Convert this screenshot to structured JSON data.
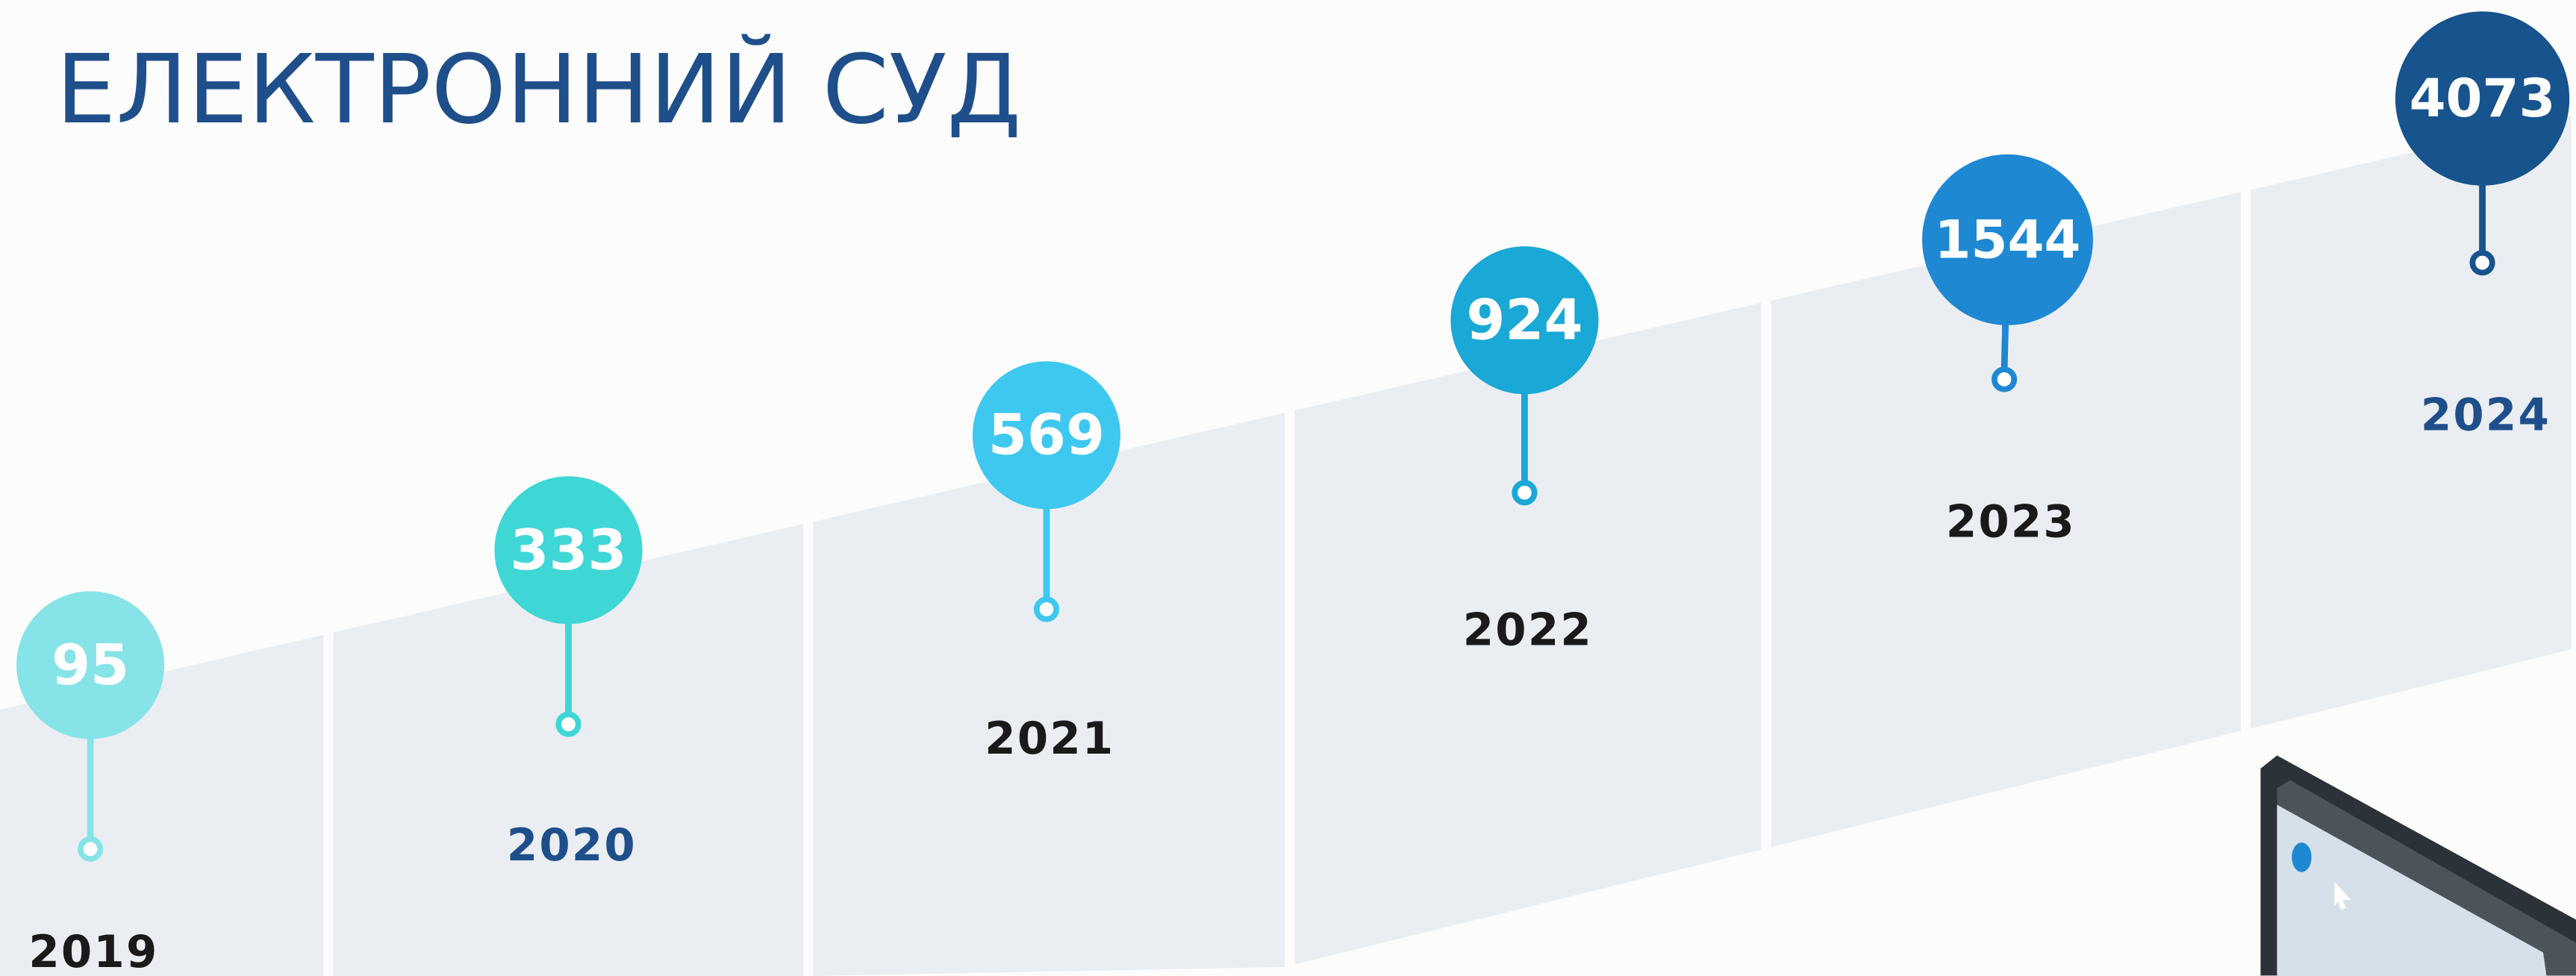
{
  "header": {
    "title": "ЕЛЕКТРОННИЙ СУД"
  },
  "items": [
    {
      "year": "2019",
      "value": "95",
      "color": "#86e3e8",
      "year_color": "#1a1a1a"
    },
    {
      "year": "2020",
      "value": "333",
      "color": "#3fd6d6",
      "year_color": "#1f4f8a"
    },
    {
      "year": "2021",
      "value": "569",
      "color": "#3ec8ef",
      "year_color": "#1a1a1a"
    },
    {
      "year": "2022",
      "value": "924",
      "color": "#1aa8d6",
      "year_color": "#1a1a1a"
    },
    {
      "year": "2023",
      "value": "1544",
      "color": "#1e88d2",
      "year_color": "#1a1a1a"
    },
    {
      "year": "2024",
      "value": "4073",
      "color": "#17538c",
      "year_color": "#1f4f8a"
    }
  ]
}
